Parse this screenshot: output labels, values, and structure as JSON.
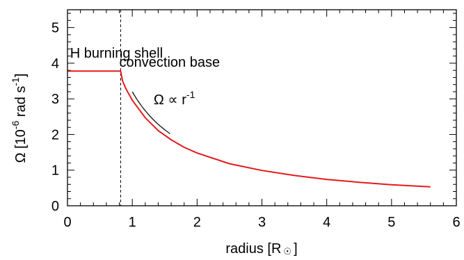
{
  "chart_data": {
    "type": "line",
    "xlabel": "radius [R",
    "xlabel_unit_symbol": "☉",
    "xlabel_close": "]",
    "ylabel": "Ω [10",
    "ylabel_exp1": "-6",
    "ylabel_mid": " rad s",
    "ylabel_exp2": "-1",
    "ylabel_close": "]",
    "xlim": [
      0,
      6
    ],
    "ylim": [
      0,
      5.5
    ],
    "x_ticks": [
      "0",
      "1",
      "2",
      "3",
      "4",
      "5",
      "6"
    ],
    "y_ticks": [
      "0",
      "1",
      "2",
      "3",
      "4",
      "5"
    ],
    "x_minor_step": 0.2,
    "y_minor_step": 0.2,
    "grid": false,
    "colors": {
      "series": "#e41a1c",
      "reference": "#000000",
      "axes": "#000000"
    },
    "series": [
      {
        "color": "#e41a1c",
        "x": [
          0.0,
          0.2,
          0.4,
          0.6,
          0.8,
          0.82,
          0.85,
          0.9,
          1.0,
          1.2,
          1.4,
          1.6,
          1.8,
          2.0,
          2.5,
          3.0,
          3.5,
          4.0,
          4.5,
          5.0,
          5.5,
          5.6
        ],
        "y": [
          3.78,
          3.78,
          3.78,
          3.78,
          3.78,
          3.78,
          3.5,
          3.29,
          2.96,
          2.47,
          2.11,
          1.85,
          1.64,
          1.48,
          1.18,
          0.99,
          0.85,
          0.74,
          0.66,
          0.59,
          0.54,
          0.53
        ]
      }
    ],
    "reference_line": {
      "label": "Ω ∝ r",
      "label_exponent": "-1",
      "x": [
        1.0,
        1.58
      ],
      "y": [
        3.2,
        2.03
      ]
    },
    "vertical_line": {
      "x": 0.82,
      "style": "dashed"
    },
    "annotations": [
      {
        "text": "H burning shell",
        "x": 0.04,
        "y": 4.15
      },
      {
        "text": "convection base",
        "x": 0.8,
        "y": 3.9
      }
    ]
  }
}
